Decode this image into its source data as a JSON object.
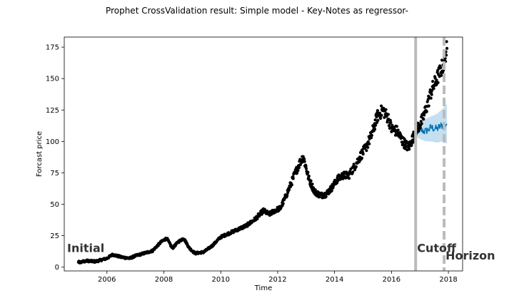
{
  "chart_data": {
    "type": "scatter",
    "title": "Prophet CrossValidation result: Simple model - Key-Notes as regressor-",
    "xlabel": "Time",
    "ylabel": "Forcast price",
    "xlim": [
      2004.5,
      2018.5
    ],
    "ylim": [
      -3,
      183
    ],
    "x_ticks": [
      {
        "value": 2006,
        "label": "2006"
      },
      {
        "value": 2008,
        "label": "2008"
      },
      {
        "value": 2010,
        "label": "2010"
      },
      {
        "value": 2012,
        "label": "2012"
      },
      {
        "value": 2014,
        "label": "2014"
      },
      {
        "value": 2016,
        "label": "2016"
      },
      {
        "value": 2018,
        "label": "2018"
      }
    ],
    "y_ticks": [
      {
        "value": 0,
        "label": "0"
      },
      {
        "value": 25,
        "label": "25"
      },
      {
        "value": 50,
        "label": "50"
      },
      {
        "value": 75,
        "label": "75"
      },
      {
        "value": 100,
        "label": "100"
      },
      {
        "value": 125,
        "label": "125"
      },
      {
        "value": 150,
        "label": "150"
      },
      {
        "value": 175,
        "label": "175"
      }
    ],
    "grid": false,
    "legend": "none",
    "colors": {
      "actual": "#000000",
      "forecast": "#0072b2",
      "interval": "#9ecae8",
      "cutoff_line": "#bbbbbb"
    },
    "actual_keypoints": [
      [
        2005.0,
        4
      ],
      [
        2005.3,
        5
      ],
      [
        2005.6,
        4.5
      ],
      [
        2006.0,
        7
      ],
      [
        2006.2,
        10
      ],
      [
        2006.5,
        8
      ],
      [
        2006.8,
        7
      ],
      [
        2007.0,
        9
      ],
      [
        2007.3,
        11
      ],
      [
        2007.6,
        13
      ],
      [
        2007.9,
        20
      ],
      [
        2008.1,
        23
      ],
      [
        2008.3,
        15
      ],
      [
        2008.5,
        20
      ],
      [
        2008.7,
        23
      ],
      [
        2008.9,
        15
      ],
      [
        2009.1,
        11
      ],
      [
        2009.4,
        12
      ],
      [
        2009.7,
        17
      ],
      [
        2010.0,
        24
      ],
      [
        2010.3,
        27
      ],
      [
        2010.6,
        30
      ],
      [
        2010.9,
        33
      ],
      [
        2011.2,
        38
      ],
      [
        2011.5,
        45
      ],
      [
        2011.7,
        42
      ],
      [
        2011.9,
        45
      ],
      [
        2012.1,
        47
      ],
      [
        2012.3,
        57
      ],
      [
        2012.5,
        68
      ],
      [
        2012.6,
        74
      ],
      [
        2012.8,
        84
      ],
      [
        2012.9,
        88
      ],
      [
        2013.1,
        70
      ],
      [
        2013.3,
        60
      ],
      [
        2013.5,
        57
      ],
      [
        2013.7,
        58
      ],
      [
        2013.9,
        63
      ],
      [
        2014.1,
        70
      ],
      [
        2014.3,
        73
      ],
      [
        2014.5,
        73
      ],
      [
        2014.7,
        80
      ],
      [
        2014.9,
        88
      ],
      [
        2015.1,
        95
      ],
      [
        2015.3,
        105
      ],
      [
        2015.5,
        120
      ],
      [
        2015.7,
        125
      ],
      [
        2015.9,
        118
      ],
      [
        2016.0,
        110
      ],
      [
        2016.2,
        108
      ],
      [
        2016.4,
        100
      ],
      [
        2016.6,
        95
      ],
      [
        2016.8,
        105
      ],
      [
        2016.9,
        112
      ]
    ],
    "holdout_actual": [
      [
        2016.85,
        110
      ],
      [
        2017.0,
        113
      ],
      [
        2017.1,
        118
      ],
      [
        2017.2,
        125
      ],
      [
        2017.3,
        132
      ],
      [
        2017.4,
        140
      ],
      [
        2017.5,
        145
      ],
      [
        2017.6,
        150
      ],
      [
        2017.7,
        155
      ],
      [
        2017.8,
        160
      ],
      [
        2017.85,
        162
      ],
      [
        2017.9,
        170
      ],
      [
        2017.95,
        174
      ]
    ],
    "forecast": [
      [
        2016.85,
        108
      ],
      [
        2017.0,
        109
      ],
      [
        2017.2,
        108
      ],
      [
        2017.4,
        111
      ],
      [
        2017.6,
        110
      ],
      [
        2017.8,
        113
      ],
      [
        2017.95,
        114
      ]
    ],
    "forecast_upper": [
      [
        2016.85,
        112
      ],
      [
        2017.0,
        115
      ],
      [
        2017.2,
        118
      ],
      [
        2017.4,
        120
      ],
      [
        2017.6,
        122
      ],
      [
        2017.8,
        126
      ],
      [
        2017.95,
        130
      ]
    ],
    "forecast_lower": [
      [
        2016.85,
        104
      ],
      [
        2017.0,
        102
      ],
      [
        2017.2,
        100
      ],
      [
        2017.4,
        100
      ],
      [
        2017.6,
        99
      ],
      [
        2017.8,
        100
      ],
      [
        2017.95,
        98
      ]
    ],
    "vertical_lines": [
      {
        "x": 2016.85,
        "style": "solid"
      },
      {
        "x": 2017.85,
        "style": "dashed"
      }
    ],
    "annotations": [
      {
        "text": "Initial",
        "x": 2004.6,
        "y": 12
      },
      {
        "text": "Cutoff",
        "x": 2016.9,
        "y": 12
      },
      {
        "text": "Horizon",
        "x": 2017.9,
        "y": 6
      }
    ]
  }
}
